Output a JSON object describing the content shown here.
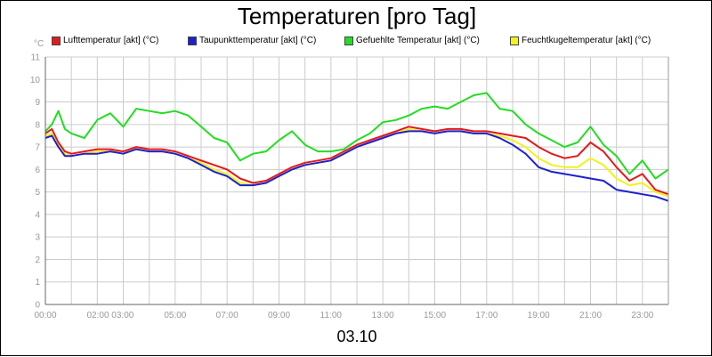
{
  "chart_data": {
    "type": "line",
    "title": "Temperaturen [pro Tag]",
    "xlabel": "03.10",
    "ylabel": "°C",
    "x_tick_labels": [
      "00:00",
      "02:00 03:00",
      "05:00",
      "07:00",
      "09:00",
      "11:00",
      "13:00",
      "15:00",
      "17:00",
      "19:00",
      "21:00",
      "23:00"
    ],
    "x_tick_hours": [
      0,
      2.5,
      5,
      7,
      9,
      11,
      13,
      15,
      17,
      19,
      21,
      23
    ],
    "y_tick_labels": [
      "0",
      "1",
      "2",
      "3",
      "4",
      "5",
      "6",
      "7",
      "8",
      "9",
      "10",
      "11"
    ],
    "xlim": [
      0,
      24
    ],
    "ylim": [
      0,
      11
    ],
    "grid": true,
    "legend_position": "top",
    "series": [
      {
        "name": "Lufttemperatur [akt] (°C)",
        "color": "#e31a1c",
        "x": [
          0,
          0.25,
          0.5,
          0.75,
          1,
          1.5,
          2,
          2.5,
          3,
          3.5,
          4,
          4.5,
          5,
          5.5,
          6,
          6.5,
          7,
          7.5,
          8,
          8.5,
          9,
          9.5,
          10,
          10.5,
          11,
          11.5,
          12,
          12.5,
          13,
          13.5,
          14,
          14.5,
          15,
          15.5,
          16,
          16.5,
          17,
          17.5,
          18,
          18.5,
          19,
          19.5,
          20,
          20.5,
          21,
          21.5,
          22,
          22.5,
          23,
          23.5,
          24
        ],
        "values": [
          7.6,
          7.8,
          7.2,
          6.8,
          6.7,
          6.8,
          6.9,
          6.9,
          6.8,
          7.0,
          6.9,
          6.9,
          6.8,
          6.6,
          6.4,
          6.2,
          6.0,
          5.6,
          5.4,
          5.5,
          5.8,
          6.1,
          6.3,
          6.4,
          6.5,
          6.8,
          7.1,
          7.3,
          7.5,
          7.7,
          7.9,
          7.8,
          7.7,
          7.8,
          7.8,
          7.7,
          7.7,
          7.6,
          7.5,
          7.4,
          7.0,
          6.7,
          6.5,
          6.6,
          7.2,
          6.8,
          6.1,
          5.5,
          5.8,
          5.1,
          4.9
        ]
      },
      {
        "name": "Taupunkttemperatur [akt] (°C)",
        "color": "#1f1fd1",
        "x": [
          0,
          0.25,
          0.5,
          0.75,
          1,
          1.5,
          2,
          2.5,
          3,
          3.5,
          4,
          4.5,
          5,
          5.5,
          6,
          6.5,
          7,
          7.5,
          8,
          8.5,
          9,
          9.5,
          10,
          10.5,
          11,
          11.5,
          12,
          12.5,
          13,
          13.5,
          14,
          14.5,
          15,
          15.5,
          16,
          16.5,
          17,
          17.5,
          18,
          18.5,
          19,
          19.5,
          20,
          20.5,
          21,
          21.5,
          22,
          22.5,
          23,
          23.5,
          24
        ],
        "values": [
          7.4,
          7.5,
          7.0,
          6.6,
          6.6,
          6.7,
          6.7,
          6.8,
          6.7,
          6.9,
          6.8,
          6.8,
          6.7,
          6.5,
          6.2,
          5.9,
          5.7,
          5.3,
          5.3,
          5.4,
          5.7,
          6.0,
          6.2,
          6.3,
          6.4,
          6.7,
          7.0,
          7.2,
          7.4,
          7.6,
          7.7,
          7.7,
          7.6,
          7.7,
          7.7,
          7.6,
          7.6,
          7.4,
          7.1,
          6.7,
          6.1,
          5.9,
          5.8,
          5.7,
          5.6,
          5.5,
          5.1,
          5.0,
          4.9,
          4.8,
          4.6
        ]
      },
      {
        "name": "Gefuehlte Temperatur [akt] (°C)",
        "color": "#22dd22",
        "x": [
          0,
          0.25,
          0.5,
          0.75,
          1,
          1.5,
          2,
          2.5,
          3,
          3.5,
          4,
          4.5,
          5,
          5.5,
          6,
          6.5,
          7,
          7.5,
          8,
          8.5,
          9,
          9.5,
          10,
          10.5,
          11,
          11.5,
          12,
          12.5,
          13,
          13.5,
          14,
          14.5,
          15,
          15.5,
          16,
          16.5,
          17,
          17.5,
          18,
          18.5,
          19,
          19.5,
          20,
          20.5,
          21,
          21.5,
          22,
          22.5,
          23,
          23.5,
          24
        ],
        "values": [
          7.7,
          8.0,
          8.6,
          7.8,
          7.6,
          7.4,
          8.2,
          8.5,
          7.9,
          8.7,
          8.6,
          8.5,
          8.6,
          8.4,
          7.9,
          7.4,
          7.2,
          6.4,
          6.7,
          6.8,
          7.3,
          7.7,
          7.1,
          6.8,
          6.8,
          6.9,
          7.3,
          7.6,
          8.1,
          8.2,
          8.4,
          8.7,
          8.8,
          8.7,
          9.0,
          9.3,
          9.4,
          8.7,
          8.6,
          8.0,
          7.6,
          7.3,
          7.0,
          7.2,
          7.9,
          7.1,
          6.6,
          5.8,
          6.4,
          5.6,
          6.0
        ]
      },
      {
        "name": "Feuchtkugeltemperatur [akt] (°C)",
        "color": "#f2f21c",
        "x": [
          0,
          0.25,
          0.5,
          0.75,
          1,
          1.5,
          2,
          2.5,
          3,
          3.5,
          4,
          4.5,
          5,
          5.5,
          6,
          6.5,
          7,
          7.5,
          8,
          8.5,
          9,
          9.5,
          10,
          10.5,
          11,
          11.5,
          12,
          12.5,
          13,
          13.5,
          14,
          14.5,
          15,
          15.5,
          16,
          16.5,
          17,
          17.5,
          18,
          18.5,
          19,
          19.5,
          20,
          20.5,
          21,
          21.5,
          22,
          22.5,
          23,
          23.5,
          24
        ],
        "values": [
          7.5,
          7.6,
          7.1,
          6.7,
          6.6,
          6.7,
          6.8,
          6.8,
          6.8,
          6.9,
          6.8,
          6.8,
          6.7,
          6.5,
          6.3,
          6.0,
          5.8,
          5.4,
          5.3,
          5.4,
          5.7,
          6.0,
          6.2,
          6.3,
          6.4,
          6.7,
          7.0,
          7.2,
          7.4,
          7.6,
          7.8,
          7.7,
          7.6,
          7.7,
          7.7,
          7.6,
          7.6,
          7.5,
          7.3,
          7.0,
          6.5,
          6.2,
          6.1,
          6.1,
          6.5,
          6.2,
          5.6,
          5.3,
          5.4,
          5.0,
          4.8
        ]
      }
    ]
  }
}
